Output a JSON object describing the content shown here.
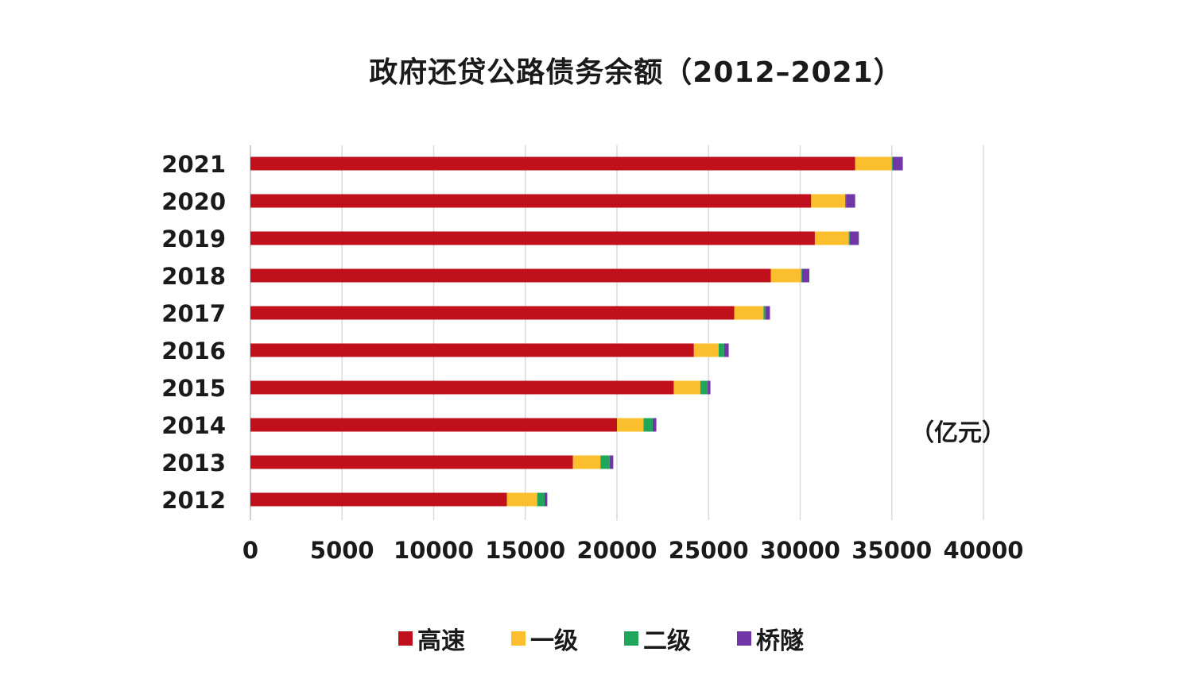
{
  "chart_data": {
    "type": "bar",
    "orientation": "horizontal",
    "stacked": true,
    "title": "政府还贷公路债务余额（2012–2021）",
    "unit_label": "（亿元）",
    "categories": [
      "2021",
      "2020",
      "2019",
      "2018",
      "2017",
      "2016",
      "2015",
      "2014",
      "2013",
      "2012"
    ],
    "series": [
      {
        "name": "高速",
        "color": "#C0101B",
        "values": [
          33000,
          30600,
          30800,
          28400,
          26400,
          24200,
          23100,
          20000,
          17600,
          14000
        ]
      },
      {
        "name": "一级",
        "color": "#FBBF2E",
        "values": [
          2000,
          1850,
          1850,
          1650,
          1600,
          1350,
          1450,
          1450,
          1500,
          1650
        ]
      },
      {
        "name": "二级",
        "color": "#1FA65A",
        "values": [
          50,
          50,
          50,
          50,
          100,
          300,
          400,
          500,
          500,
          400
        ]
      },
      {
        "name": "桥隧",
        "color": "#7236A7",
        "values": [
          550,
          500,
          500,
          400,
          250,
          250,
          150,
          200,
          200,
          150
        ]
      }
    ],
    "xlim": [
      0,
      40000
    ],
    "xticks": [
      "0",
      "5000",
      "10000",
      "15000",
      "20000",
      "25000",
      "30000",
      "35000",
      "40000"
    ],
    "grid": true,
    "legend_position": "bottom"
  }
}
